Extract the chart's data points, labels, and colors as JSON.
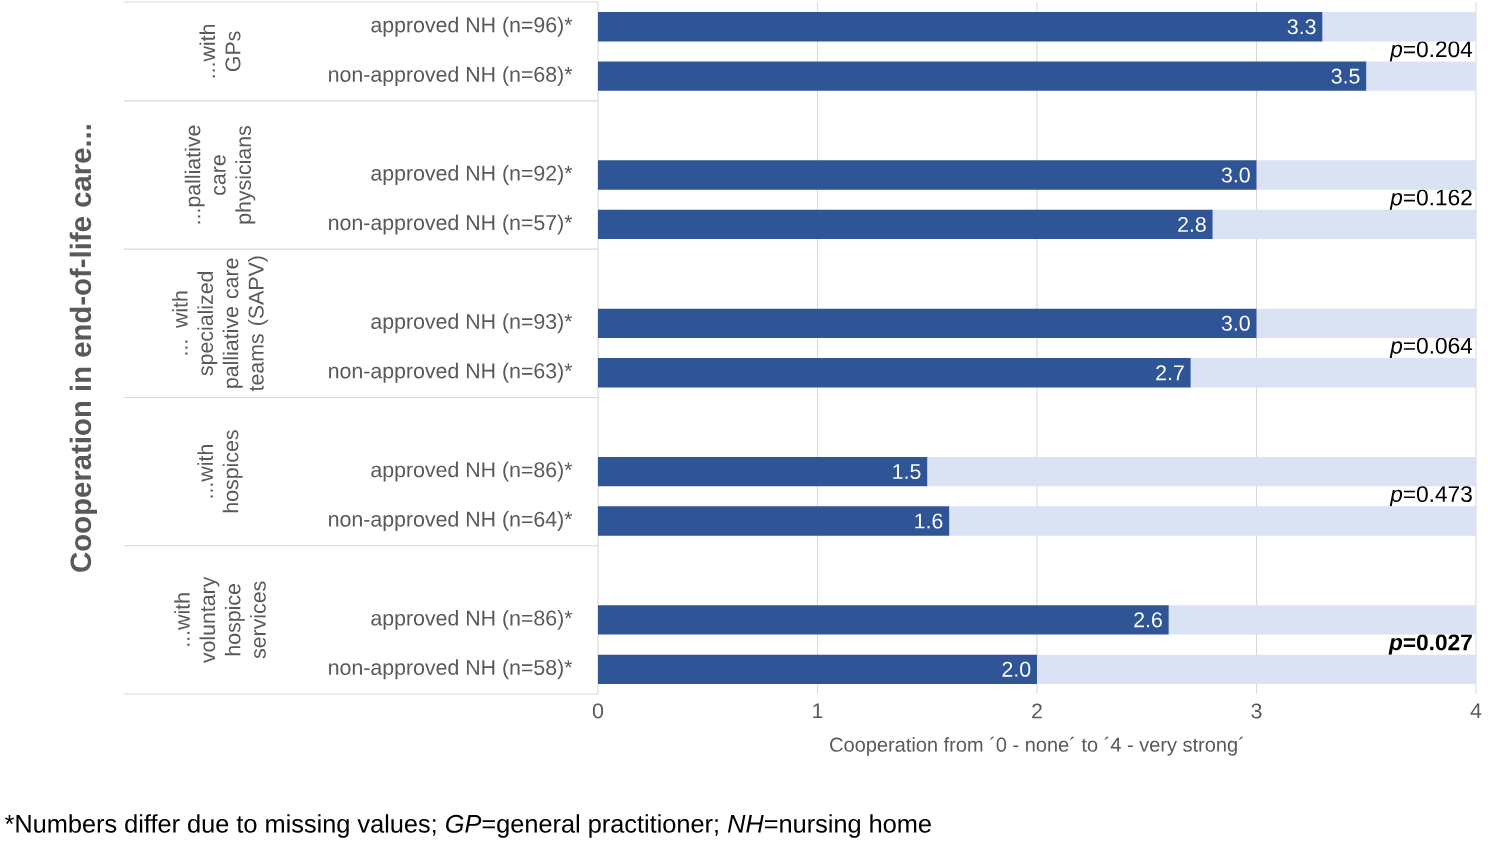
{
  "chart_data": {
    "type": "bar",
    "orientation": "horizontal",
    "stacked": true,
    "xlabel": "Cooperation from ´0 - none´ to ´4 - very strong´",
    "categories": [
      "approved NH (n=96)*",
      "non-approved NH (n=68)*",
      null,
      "approved NH (n=92)*",
      "non-approved NH (n=57)*",
      null,
      "approved NH (n=93)*",
      "non-approved NH (n=63)*",
      null,
      "approved NH (n=86)*",
      "non-approved NH (n=64)*",
      null,
      "approved NH (n=86)*",
      "non-approved NH (n=58)*"
    ],
    "series": [
      {
        "color": "#2f5597",
        "values": [
          3.3,
          3.5,
          null,
          3.0,
          2.8,
          null,
          3.0,
          2.7,
          null,
          1.5,
          1.6,
          null,
          2.6,
          2.0
        ],
        "value_labels": [
          "3.3",
          "3.5",
          null,
          "3.0",
          "2.8",
          null,
          "3.0",
          "2.7",
          null,
          "1.5",
          "1.6",
          null,
          "2.6",
          "2.0"
        ]
      },
      {
        "color": "#dae3f3",
        "values": [
          0.7,
          0.5,
          null,
          1.0,
          1.2,
          null,
          1.0,
          1.3,
          null,
          2.5,
          2.4,
          null,
          1.4,
          2.0
        ]
      }
    ],
    "xlim": [
      0,
      4
    ],
    "xticks": [
      0,
      1,
      2,
      3,
      4
    ],
    "grid": "x",
    "annotations": [
      "...with GPs",
      "...palliative care physicians",
      "... with specialized palliative care teams (SAPV)",
      "...with hospices",
      "...with voluntary hospice services",
      "*p*=0.204",
      "*p*=0.162",
      "*p*=0.064",
      "*p*=0.473",
      "***p*=0.027**",
      "Cooperation in end-of-life care...",
      "*Numbers differ due to missing values; *GP*=general practitioner; *NH*=nursing home"
    ]
  }
}
